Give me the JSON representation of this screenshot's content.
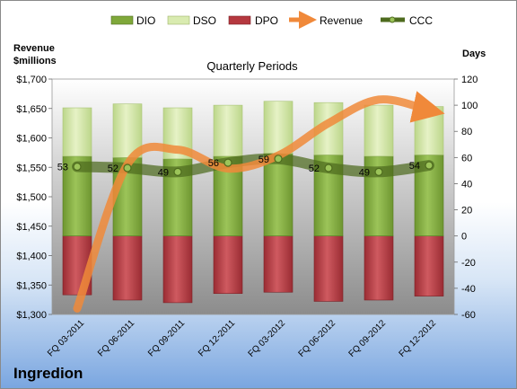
{
  "company": "Ingredion",
  "chart_data": {
    "type": "bar",
    "subtitle": "Quarterly Periods",
    "left_axis_label_line1": "Revenue",
    "left_axis_label_line2": "$millions",
    "right_axis_label": "Days",
    "categories": [
      "FQ 03-2011",
      "FQ 06-2011",
      "FQ 09-2011",
      "FQ 12-2011",
      "FQ 03-2012",
      "FQ 06-2012",
      "FQ 09-2012",
      "FQ 12-2012"
    ],
    "left_ticks": [
      "$1,300",
      "$1,350",
      "$1,400",
      "$1,450",
      "$1,500",
      "$1,550",
      "$1,600",
      "$1,650",
      "$1,700"
    ],
    "left_ylim": [
      1300,
      1700
    ],
    "right_ticks": [
      "-60",
      "-40",
      "-20",
      "0",
      "20",
      "40",
      "60",
      "80",
      "100",
      "120"
    ],
    "right_ylim": [
      -60,
      120
    ],
    "legend": [
      "DIO",
      "DSO",
      "DPO",
      "Revenue",
      "CCC"
    ],
    "series": [
      {
        "name": "DIO",
        "axis": "right",
        "color": "#7fa83a",
        "values": [
          61,
          60,
          59,
          61,
          63,
          62,
          61,
          62
        ]
      },
      {
        "name": "DSO",
        "axis": "right",
        "color": "#cfe3a0",
        "values": [
          37,
          41,
          39,
          39,
          40,
          40,
          39,
          37
        ]
      },
      {
        "name": "DPO",
        "axis": "right",
        "color": "#b5383f",
        "values": [
          -45,
          -49,
          -51,
          -44,
          -43,
          -50,
          -49,
          -46
        ]
      },
      {
        "name": "Revenue",
        "axis": "left",
        "color": "#f0893a",
        "values": [
          1310,
          1555,
          1580,
          1548,
          1570,
          1625,
          1665,
          1647
        ]
      },
      {
        "name": "CCC",
        "axis": "right",
        "color": "#4e6b1e",
        "values": [
          53,
          52,
          49,
          56,
          59,
          52,
          49,
          54
        ]
      }
    ],
    "ccc_labels": [
      "53",
      "52",
      "49",
      "56",
      "59",
      "52",
      "49",
      "54"
    ],
    "grid": false,
    "legend_position": "top"
  }
}
